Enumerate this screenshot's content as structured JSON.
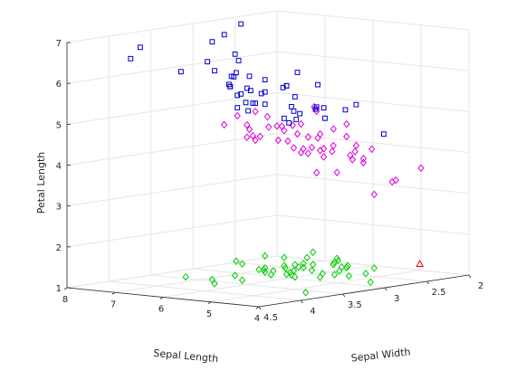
{
  "chart_data": {
    "type": "scatter",
    "title": "",
    "grid": true,
    "axes": {
      "x": {
        "label": "Sepal Length",
        "range": [
          4,
          8
        ],
        "ticks": [
          4,
          5,
          6,
          7,
          8
        ]
      },
      "y": {
        "label": "Sepal Width",
        "range": [
          2,
          4.5
        ],
        "ticks": [
          2,
          2.5,
          3,
          3.5,
          4,
          4.5
        ]
      },
      "z": {
        "label": "Petal Length",
        "range": [
          1,
          7
        ],
        "ticks": [
          1,
          2,
          3,
          4,
          5,
          6,
          7
        ]
      }
    },
    "series": [
      {
        "marker": "diamond",
        "color": "#00cc00",
        "points": [
          [
            5.1,
            3.5,
            1.4
          ],
          [
            4.9,
            3.0,
            1.4
          ],
          [
            4.7,
            3.2,
            1.3
          ],
          [
            4.6,
            3.1,
            1.5
          ],
          [
            5.0,
            3.6,
            1.4
          ],
          [
            5.4,
            3.9,
            1.7
          ],
          [
            4.6,
            3.4,
            1.4
          ],
          [
            5.0,
            3.4,
            1.5
          ],
          [
            4.4,
            2.9,
            1.4
          ],
          [
            4.9,
            3.1,
            1.5
          ],
          [
            5.4,
            3.7,
            1.5
          ],
          [
            4.8,
            3.4,
            1.6
          ],
          [
            4.8,
            3.0,
            1.4
          ],
          [
            4.3,
            3.0,
            1.1
          ],
          [
            5.8,
            4.0,
            1.2
          ],
          [
            5.7,
            4.4,
            1.5
          ],
          [
            5.4,
            3.9,
            1.3
          ],
          [
            5.1,
            3.5,
            1.4
          ],
          [
            5.7,
            3.8,
            1.7
          ],
          [
            5.1,
            3.8,
            1.5
          ],
          [
            5.4,
            3.4,
            1.7
          ],
          [
            5.1,
            3.7,
            1.5
          ],
          [
            4.6,
            3.6,
            1.0
          ],
          [
            5.1,
            3.3,
            1.7
          ],
          [
            4.8,
            3.4,
            1.9
          ],
          [
            5.0,
            3.0,
            1.6
          ],
          [
            5.0,
            3.4,
            1.6
          ],
          [
            5.2,
            3.5,
            1.5
          ],
          [
            5.2,
            3.4,
            1.4
          ],
          [
            4.7,
            3.2,
            1.6
          ],
          [
            4.8,
            3.1,
            1.6
          ],
          [
            5.4,
            3.4,
            1.5
          ],
          [
            5.2,
            4.1,
            1.5
          ],
          [
            5.5,
            4.2,
            1.4
          ],
          [
            4.9,
            3.1,
            1.5
          ],
          [
            5.0,
            3.2,
            1.2
          ],
          [
            5.5,
            3.5,
            1.3
          ],
          [
            4.9,
            3.6,
            1.4
          ],
          [
            4.4,
            3.0,
            1.3
          ],
          [
            5.1,
            3.4,
            1.5
          ],
          [
            5.0,
            3.5,
            1.3
          ],
          [
            4.4,
            3.2,
            1.3
          ],
          [
            5.0,
            3.5,
            1.6
          ],
          [
            5.1,
            3.8,
            1.9
          ],
          [
            4.8,
            3.0,
            1.4
          ],
          [
            5.1,
            3.8,
            1.6
          ],
          [
            4.6,
            3.2,
            1.4
          ],
          [
            5.3,
            3.7,
            1.5
          ],
          [
            5.0,
            3.3,
            1.4
          ]
        ]
      },
      {
        "marker": "triangle",
        "color": "#ff0000",
        "points": [
          [
            4.5,
            2.3,
            1.3
          ]
        ]
      },
      {
        "marker": "diamond",
        "color": "#dd00dd",
        "points": [
          [
            7.0,
            3.2,
            4.7
          ],
          [
            6.4,
            3.2,
            4.5
          ],
          [
            6.9,
            3.1,
            4.9
          ],
          [
            5.5,
            2.3,
            4.0
          ],
          [
            6.5,
            2.8,
            4.6
          ],
          [
            5.7,
            2.8,
            4.5
          ],
          [
            6.3,
            3.3,
            4.7
          ],
          [
            4.9,
            2.4,
            3.3
          ],
          [
            6.6,
            2.9,
            4.6
          ],
          [
            5.2,
            2.7,
            3.9
          ],
          [
            5.0,
            2.0,
            3.5
          ],
          [
            5.9,
            3.0,
            4.2
          ],
          [
            6.0,
            2.2,
            4.0
          ],
          [
            6.1,
            2.9,
            4.7
          ],
          [
            5.6,
            2.9,
            3.6
          ],
          [
            6.7,
            3.1,
            4.4
          ],
          [
            5.6,
            3.0,
            4.5
          ],
          [
            5.8,
            2.7,
            4.1
          ],
          [
            6.2,
            2.2,
            4.5
          ],
          [
            5.6,
            2.5,
            3.9
          ],
          [
            5.9,
            3.2,
            4.8
          ],
          [
            6.1,
            2.8,
            4.0
          ],
          [
            6.3,
            2.5,
            4.9
          ],
          [
            6.1,
            2.8,
            4.7
          ],
          [
            6.4,
            2.9,
            4.3
          ],
          [
            6.6,
            3.0,
            4.4
          ],
          [
            6.8,
            2.8,
            4.8
          ],
          [
            6.7,
            3.0,
            5.0
          ],
          [
            6.0,
            2.9,
            4.5
          ],
          [
            5.7,
            2.6,
            3.5
          ],
          [
            5.5,
            2.4,
            3.8
          ],
          [
            5.5,
            2.4,
            3.7
          ],
          [
            5.8,
            2.7,
            3.9
          ],
          [
            6.0,
            2.7,
            5.1
          ],
          [
            5.4,
            3.0,
            4.5
          ],
          [
            6.0,
            3.4,
            4.5
          ],
          [
            6.7,
            3.1,
            4.7
          ],
          [
            6.3,
            2.3,
            4.4
          ],
          [
            5.6,
            3.0,
            4.1
          ],
          [
            5.5,
            2.5,
            4.0
          ],
          [
            5.5,
            2.6,
            4.4
          ],
          [
            6.1,
            3.0,
            4.6
          ],
          [
            5.8,
            2.6,
            4.0
          ],
          [
            5.0,
            2.3,
            3.3
          ],
          [
            5.6,
            2.7,
            4.2
          ],
          [
            5.7,
            3.0,
            4.2
          ],
          [
            5.7,
            2.9,
            4.2
          ],
          [
            6.2,
            2.9,
            4.3
          ],
          [
            5.1,
            2.5,
            3.0
          ],
          [
            5.7,
            2.8,
            4.1
          ]
        ]
      },
      {
        "marker": "square",
        "color": "#0000cc",
        "points": [
          [
            6.3,
            3.3,
            6.0
          ],
          [
            5.8,
            2.7,
            5.1
          ],
          [
            7.1,
            3.0,
            5.9
          ],
          [
            6.3,
            2.9,
            5.6
          ],
          [
            6.5,
            3.0,
            5.8
          ],
          [
            7.6,
            3.0,
            6.6
          ],
          [
            4.9,
            2.5,
            4.5
          ],
          [
            7.3,
            2.9,
            6.3
          ],
          [
            6.7,
            2.5,
            5.8
          ],
          [
            7.2,
            3.6,
            6.1
          ],
          [
            6.5,
            3.2,
            5.1
          ],
          [
            6.4,
            2.7,
            5.3
          ],
          [
            6.8,
            3.0,
            5.5
          ],
          [
            5.7,
            2.5,
            5.0
          ],
          [
            5.8,
            2.8,
            5.1
          ],
          [
            6.4,
            3.2,
            5.3
          ],
          [
            6.5,
            3.0,
            5.5
          ],
          [
            7.7,
            3.8,
            6.7
          ],
          [
            7.7,
            2.6,
            6.9
          ],
          [
            6.0,
            2.2,
            5.0
          ],
          [
            6.9,
            3.2,
            5.7
          ],
          [
            5.6,
            2.8,
            4.9
          ],
          [
            7.7,
            2.8,
            6.7
          ],
          [
            6.3,
            2.7,
            4.9
          ],
          [
            6.7,
            3.3,
            5.7
          ],
          [
            7.2,
            3.2,
            6.0
          ],
          [
            6.2,
            2.8,
            4.8
          ],
          [
            6.1,
            3.0,
            4.9
          ],
          [
            6.4,
            2.8,
            5.6
          ],
          [
            7.2,
            3.0,
            5.8
          ],
          [
            7.4,
            2.8,
            6.1
          ],
          [
            7.9,
            3.8,
            6.4
          ],
          [
            6.4,
            2.8,
            5.6
          ],
          [
            6.3,
            2.8,
            5.1
          ],
          [
            6.1,
            2.6,
            5.6
          ],
          [
            7.7,
            3.0,
            6.1
          ],
          [
            6.3,
            3.4,
            5.6
          ],
          [
            6.4,
            3.1,
            5.5
          ],
          [
            6.0,
            3.0,
            4.8
          ],
          [
            6.9,
            3.1,
            5.4
          ],
          [
            6.7,
            3.1,
            5.6
          ],
          [
            6.9,
            3.1,
            5.1
          ],
          [
            6.8,
            3.2,
            5.9
          ],
          [
            6.7,
            3.3,
            5.7
          ],
          [
            6.7,
            3.0,
            5.2
          ],
          [
            6.3,
            2.5,
            5.0
          ],
          [
            6.5,
            3.0,
            5.2
          ],
          [
            6.2,
            3.4,
            5.4
          ],
          [
            5.9,
            3.0,
            5.1
          ]
        ]
      }
    ]
  }
}
